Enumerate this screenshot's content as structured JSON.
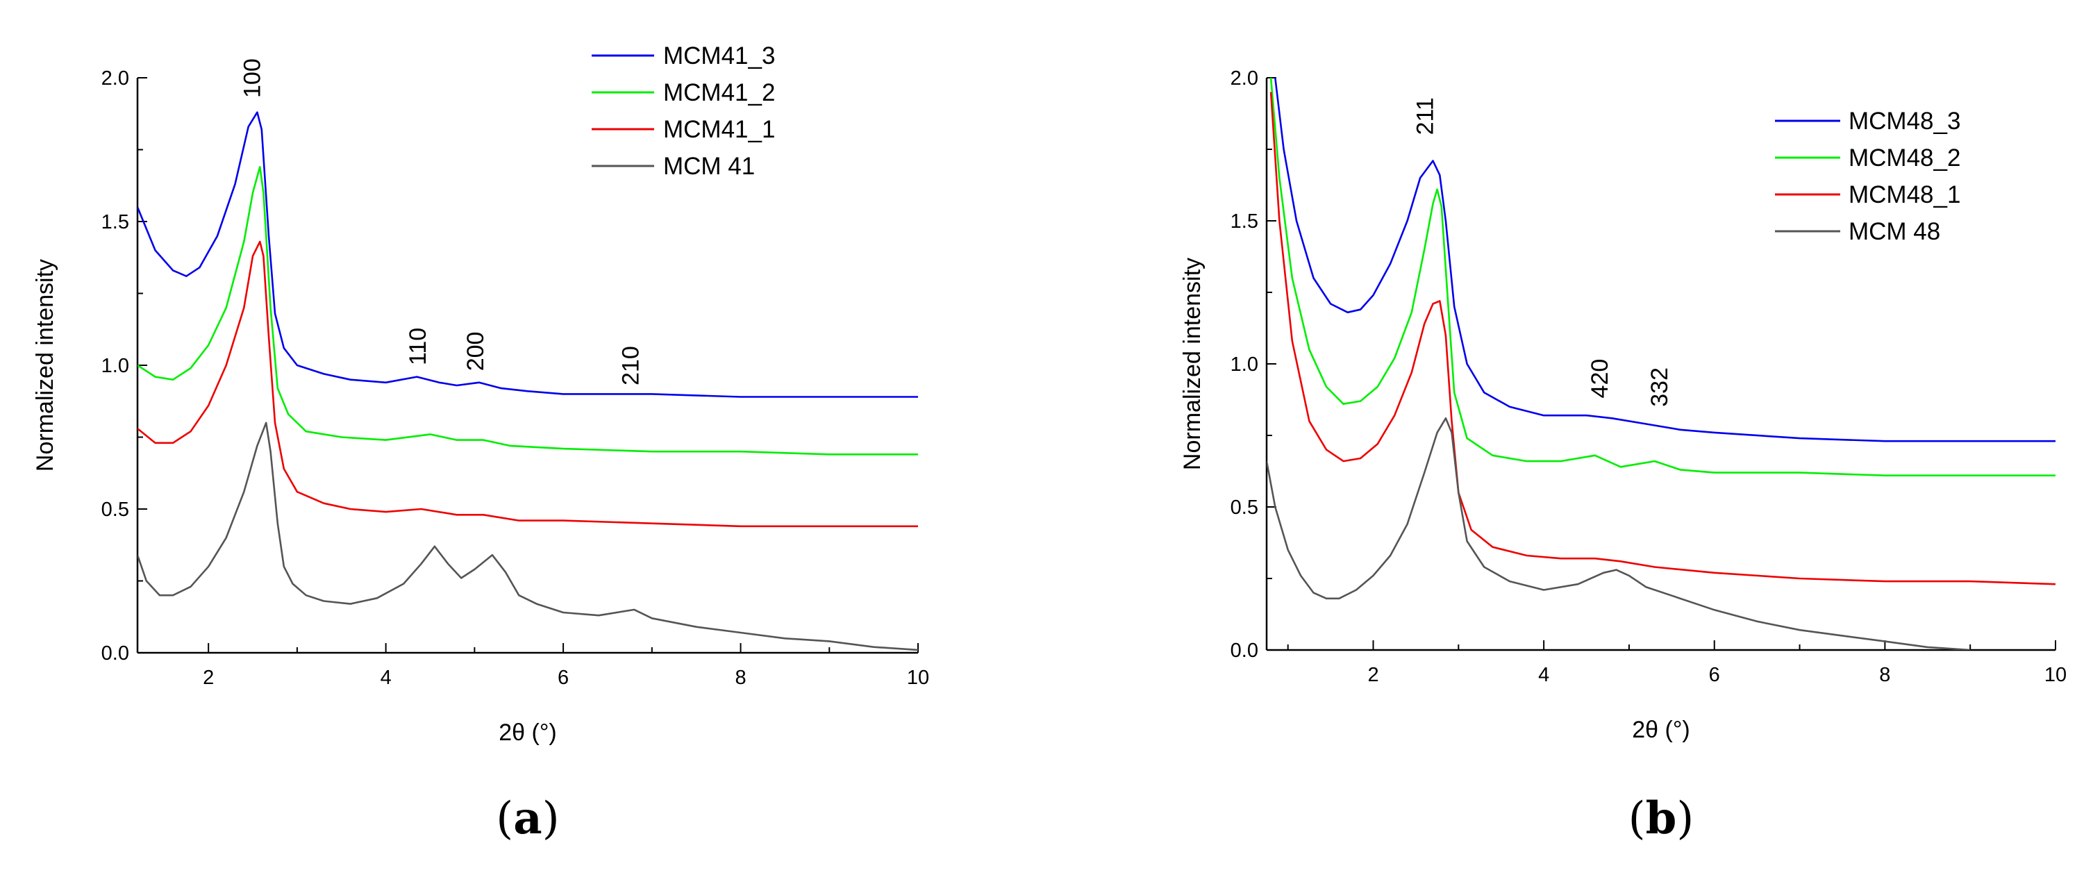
{
  "chart_data": [
    {
      "type": "line",
      "panel_label": "a",
      "xlabel": "2θ (°)",
      "ylabel": "Normalized intensity",
      "xlim": [
        1.2,
        10
      ],
      "ylim": [
        0,
        2.0
      ],
      "xticks": [
        2,
        4,
        6,
        8,
        10
      ],
      "yticks": [
        0.0,
        0.5,
        1.0,
        1.5,
        2.0
      ],
      "ytick_labels": [
        "0.0",
        "0.5",
        "1.0",
        "1.5",
        "2.0"
      ],
      "legend_position": "top-right",
      "grid": false,
      "annotations": [
        {
          "text": "100",
          "x": 2.58,
          "y": 1.93
        },
        {
          "text": "110",
          "x": 4.45,
          "y": 1.0
        },
        {
          "text": "200",
          "x": 5.1,
          "y": 0.98
        },
        {
          "text": "210",
          "x": 6.85,
          "y": 0.93
        }
      ],
      "series": [
        {
          "name": "MCM41_3",
          "color": "#0000ee",
          "x": [
            1.2,
            1.4,
            1.6,
            1.75,
            1.9,
            2.1,
            2.3,
            2.45,
            2.55,
            2.6,
            2.68,
            2.75,
            2.85,
            3.0,
            3.3,
            3.6,
            4.0,
            4.35,
            4.6,
            4.8,
            5.05,
            5.3,
            5.6,
            6.0,
            7.0,
            8.0,
            9.0,
            10.0
          ],
          "y": [
            1.55,
            1.4,
            1.33,
            1.31,
            1.34,
            1.45,
            1.63,
            1.83,
            1.88,
            1.82,
            1.45,
            1.18,
            1.06,
            1.0,
            0.97,
            0.95,
            0.94,
            0.96,
            0.94,
            0.93,
            0.94,
            0.92,
            0.91,
            0.9,
            0.9,
            0.89,
            0.89,
            0.89
          ]
        },
        {
          "name": "MCM41_2",
          "color": "#00ee00",
          "x": [
            1.2,
            1.4,
            1.6,
            1.8,
            2.0,
            2.2,
            2.4,
            2.5,
            2.58,
            2.62,
            2.7,
            2.78,
            2.9,
            3.1,
            3.5,
            4.0,
            4.5,
            4.8,
            5.1,
            5.4,
            6.0,
            7.0,
            8.0,
            9.0,
            10.0
          ],
          "y": [
            1.0,
            0.96,
            0.95,
            0.99,
            1.07,
            1.2,
            1.43,
            1.6,
            1.69,
            1.6,
            1.2,
            0.92,
            0.83,
            0.77,
            0.75,
            0.74,
            0.76,
            0.74,
            0.74,
            0.72,
            0.71,
            0.7,
            0.7,
            0.69,
            0.69
          ]
        },
        {
          "name": "MCM41_1",
          "color": "#ee0000",
          "x": [
            1.2,
            1.4,
            1.6,
            1.8,
            2.0,
            2.2,
            2.4,
            2.5,
            2.58,
            2.62,
            2.68,
            2.75,
            2.85,
            3.0,
            3.3,
            3.6,
            4.0,
            4.4,
            4.8,
            5.1,
            5.5,
            6.0,
            7.0,
            8.0,
            9.0,
            10.0
          ],
          "y": [
            0.78,
            0.73,
            0.73,
            0.77,
            0.86,
            1.0,
            1.2,
            1.38,
            1.43,
            1.38,
            1.1,
            0.8,
            0.64,
            0.56,
            0.52,
            0.5,
            0.49,
            0.5,
            0.48,
            0.48,
            0.46,
            0.46,
            0.45,
            0.44,
            0.44,
            0.44
          ]
        },
        {
          "name": "MCM 41",
          "color": "#555555",
          "x": [
            1.2,
            1.3,
            1.45,
            1.6,
            1.8,
            2.0,
            2.2,
            2.4,
            2.55,
            2.65,
            2.7,
            2.78,
            2.85,
            2.95,
            3.1,
            3.3,
            3.6,
            3.9,
            4.2,
            4.4,
            4.55,
            4.7,
            4.85,
            5.0,
            5.2,
            5.35,
            5.5,
            5.7,
            6.0,
            6.4,
            6.8,
            7.0,
            7.5,
            8.0,
            8.5,
            9.0,
            9.5,
            10.0
          ],
          "y": [
            0.34,
            0.25,
            0.2,
            0.2,
            0.23,
            0.3,
            0.4,
            0.56,
            0.72,
            0.8,
            0.7,
            0.45,
            0.3,
            0.24,
            0.2,
            0.18,
            0.17,
            0.19,
            0.24,
            0.31,
            0.37,
            0.31,
            0.26,
            0.29,
            0.34,
            0.28,
            0.2,
            0.17,
            0.14,
            0.13,
            0.15,
            0.12,
            0.09,
            0.07,
            0.05,
            0.04,
            0.02,
            0.01
          ]
        }
      ]
    },
    {
      "type": "line",
      "panel_label": "b",
      "xlabel": "2θ (°)",
      "ylabel": "Normalized intensity",
      "xlim": [
        0.75,
        10
      ],
      "ylim": [
        0,
        2.0
      ],
      "xticks": [
        2,
        4,
        6,
        8,
        10
      ],
      "yticks": [
        0.0,
        0.5,
        1.0,
        1.5,
        2.0
      ],
      "ytick_labels": [
        "0.0",
        "0.5",
        "1.0",
        "1.5",
        "2.0"
      ],
      "legend_position": "top-right",
      "grid": false,
      "annotations": [
        {
          "text": "211",
          "x": 2.7,
          "y": 1.8
        },
        {
          "text": "420",
          "x": 4.75,
          "y": 0.88
        },
        {
          "text": "332",
          "x": 5.45,
          "y": 0.85
        }
      ],
      "series": [
        {
          "name": "MCM48_3",
          "color": "#0000ee",
          "x": [
            0.85,
            0.95,
            1.1,
            1.3,
            1.5,
            1.7,
            1.85,
            2.0,
            2.2,
            2.4,
            2.55,
            2.7,
            2.78,
            2.85,
            2.95,
            3.1,
            3.3,
            3.6,
            4.0,
            4.5,
            4.8,
            5.2,
            5.6,
            6.0,
            7.0,
            8.0,
            9.0,
            10.0
          ],
          "y": [
            2.0,
            1.75,
            1.5,
            1.3,
            1.21,
            1.18,
            1.19,
            1.24,
            1.35,
            1.5,
            1.65,
            1.71,
            1.66,
            1.5,
            1.2,
            1.0,
            0.9,
            0.85,
            0.82,
            0.82,
            0.81,
            0.79,
            0.77,
            0.76,
            0.74,
            0.73,
            0.73,
            0.73
          ]
        },
        {
          "name": "MCM48_2",
          "color": "#00ee00",
          "x": [
            0.8,
            0.9,
            1.05,
            1.25,
            1.45,
            1.65,
            1.85,
            2.05,
            2.25,
            2.45,
            2.6,
            2.7,
            2.75,
            2.8,
            2.88,
            2.95,
            3.1,
            3.4,
            3.8,
            4.2,
            4.6,
            4.9,
            5.3,
            5.6,
            6.0,
            7.0,
            8.0,
            9.0,
            10.0
          ],
          "y": [
            2.0,
            1.65,
            1.3,
            1.05,
            0.92,
            0.86,
            0.87,
            0.92,
            1.02,
            1.18,
            1.4,
            1.56,
            1.61,
            1.55,
            1.2,
            0.9,
            0.74,
            0.68,
            0.66,
            0.66,
            0.68,
            0.64,
            0.66,
            0.63,
            0.62,
            0.62,
            0.61,
            0.61,
            0.61
          ]
        },
        {
          "name": "MCM48_1",
          "color": "#ee0000",
          "x": [
            0.8,
            0.9,
            1.05,
            1.25,
            1.45,
            1.65,
            1.85,
            2.05,
            2.25,
            2.45,
            2.6,
            2.7,
            2.78,
            2.85,
            2.92,
            3.0,
            3.15,
            3.4,
            3.8,
            4.2,
            4.6,
            4.9,
            5.3,
            6.0,
            7.0,
            8.0,
            9.0,
            10.0
          ],
          "y": [
            1.95,
            1.5,
            1.08,
            0.8,
            0.7,
            0.66,
            0.67,
            0.72,
            0.82,
            0.97,
            1.14,
            1.21,
            1.22,
            1.1,
            0.8,
            0.55,
            0.42,
            0.36,
            0.33,
            0.32,
            0.32,
            0.31,
            0.29,
            0.27,
            0.25,
            0.24,
            0.24,
            0.23
          ]
        },
        {
          "name": "MCM 48",
          "color": "#555555",
          "x": [
            0.75,
            0.85,
            1.0,
            1.15,
            1.3,
            1.45,
            1.6,
            1.8,
            2.0,
            2.2,
            2.4,
            2.6,
            2.75,
            2.85,
            2.92,
            3.0,
            3.1,
            3.3,
            3.6,
            4.0,
            4.4,
            4.7,
            4.85,
            5.0,
            5.2,
            5.5,
            6.0,
            6.5,
            7.0,
            7.5,
            8.0,
            8.5,
            9.0
          ],
          "y": [
            0.66,
            0.5,
            0.35,
            0.26,
            0.2,
            0.18,
            0.18,
            0.21,
            0.26,
            0.33,
            0.44,
            0.62,
            0.76,
            0.81,
            0.76,
            0.55,
            0.38,
            0.29,
            0.24,
            0.21,
            0.23,
            0.27,
            0.28,
            0.26,
            0.22,
            0.19,
            0.14,
            0.1,
            0.07,
            0.05,
            0.03,
            0.01,
            0.0
          ]
        }
      ]
    }
  ]
}
